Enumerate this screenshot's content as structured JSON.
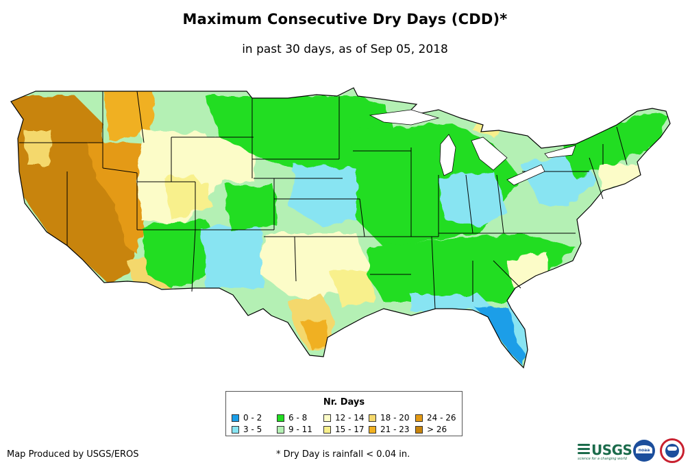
{
  "title": "Maximum Consecutive Dry Days (CDD)*",
  "subtitle": "in past 30 days, as of Sep 05, 2018",
  "legend": {
    "title": "Nr. Days",
    "items": [
      {
        "label": "0 - 2",
        "color": "#1a9ee8"
      },
      {
        "label": "3 - 5",
        "color": "#88e4f2"
      },
      {
        "label": "6 - 8",
        "color": "#22dd22"
      },
      {
        "label": "9 - 11",
        "color": "#b4f0b4"
      },
      {
        "label": "12 - 14",
        "color": "#fcfcc8"
      },
      {
        "label": "15 - 17",
        "color": "#f8f08c"
      },
      {
        "label": "18 - 20",
        "color": "#f4d86c"
      },
      {
        "label": "21 - 23",
        "color": "#f0b020"
      },
      {
        "label": "24 - 26",
        "color": "#e49a14"
      },
      {
        "label": "> 26",
        "color": "#c8840c"
      }
    ]
  },
  "credit": "Map Produced by USGS/EROS",
  "footnote": "* Dry Day is rainfall < 0.04 in.",
  "logos": {
    "usgs": "USGS",
    "usgs_tagline": "science for a changing world",
    "noaa": "noaa"
  }
}
